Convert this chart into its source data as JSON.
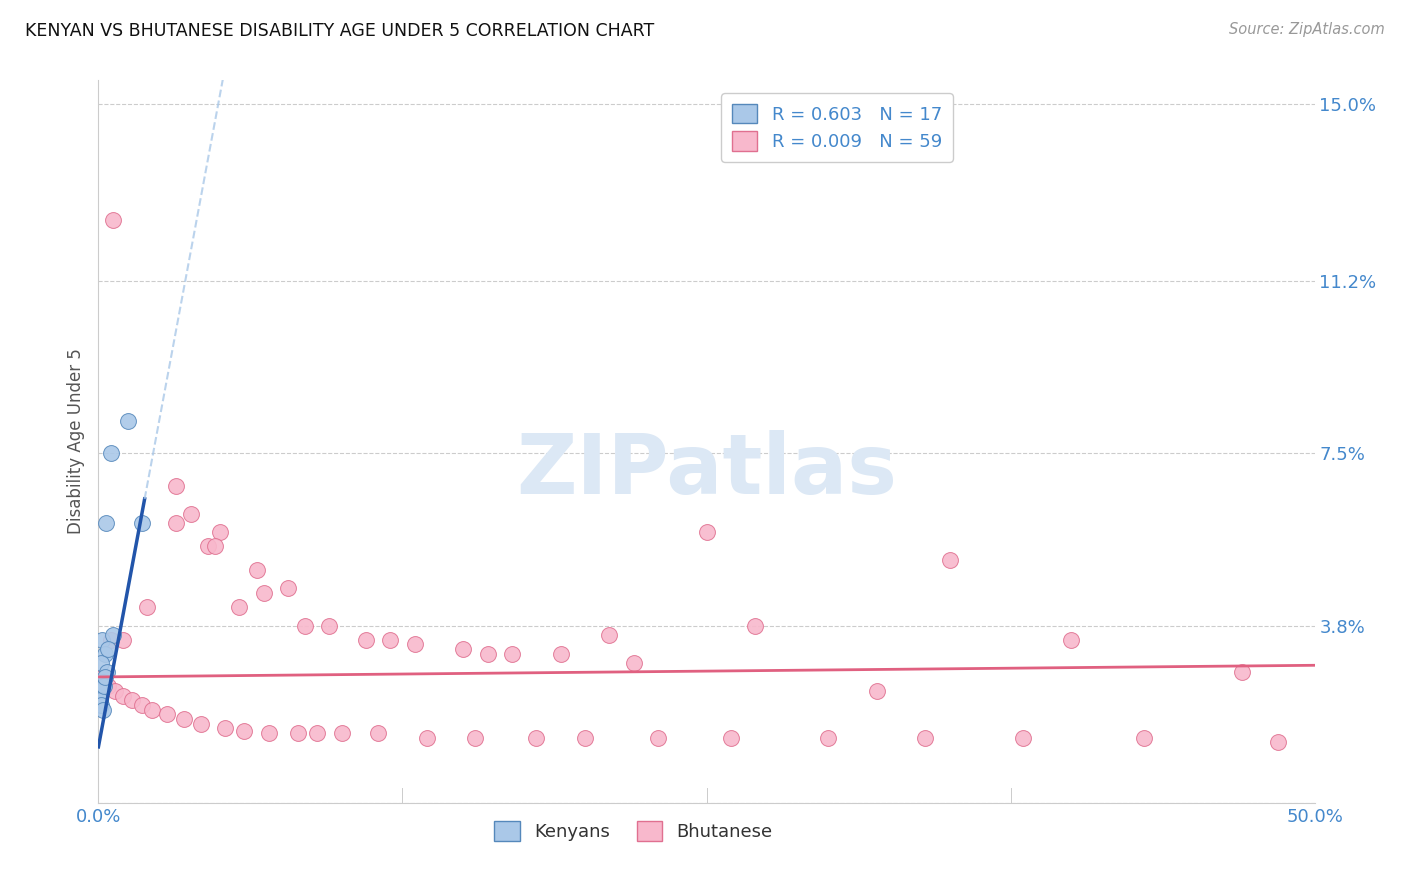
{
  "title": "KENYAN VS BHUTANESE DISABILITY AGE UNDER 5 CORRELATION CHART",
  "source": "Source: ZipAtlas.com",
  "ylabel": "Disability Age Under 5",
  "xlim": [
    0.0,
    50.0
  ],
  "ylim": [
    0.0,
    15.5
  ],
  "ytick_vals": [
    0.0,
    3.8,
    7.5,
    11.2,
    15.0
  ],
  "ytick_labels": [
    "",
    "3.8%",
    "7.5%",
    "11.2%",
    "15.0%"
  ],
  "xtick_positions": [
    0.0,
    12.5,
    25.0,
    37.5,
    50.0
  ],
  "xtick_labels": [
    "0.0%",
    "",
    "",
    "",
    "50.0%"
  ],
  "kenyan_R": "0.603",
  "kenyan_N": "17",
  "bhutanese_R": "0.009",
  "bhutanese_N": "59",
  "kenyan_color": "#aac8e8",
  "bhutanese_color": "#f8b8cc",
  "kenyan_edge_color": "#5588bb",
  "bhutanese_edge_color": "#e07090",
  "kenyan_line_color": "#2255aa",
  "bhutanese_line_color": "#e06080",
  "kenyan_line_intercept": 1.2,
  "kenyan_line_slope": 2.8,
  "bhutanese_line_intercept": 2.7,
  "bhutanese_line_slope": 0.005,
  "kenyan_solid_x_end": 1.9,
  "kenyan_points_x": [
    0.3,
    0.5,
    1.2,
    0.15,
    0.25,
    0.1,
    0.35,
    0.2,
    0.05,
    0.08,
    0.12,
    0.18,
    1.8,
    0.6,
    0.22,
    0.4,
    0.28
  ],
  "kenyan_points_y": [
    6.0,
    7.5,
    8.2,
    3.5,
    3.2,
    3.0,
    2.8,
    2.6,
    2.4,
    2.2,
    2.1,
    2.0,
    6.0,
    3.6,
    2.5,
    3.3,
    2.7
  ],
  "bhutanese_points_x": [
    0.6,
    3.2,
    3.8,
    5.0,
    4.5,
    6.5,
    7.8,
    5.8,
    9.5,
    11.0,
    13.0,
    15.0,
    17.0,
    19.0,
    22.0,
    25.0,
    0.2,
    0.4,
    0.7,
    1.0,
    1.4,
    1.8,
    2.2,
    2.8,
    3.5,
    4.2,
    5.2,
    6.0,
    7.0,
    8.2,
    9.0,
    10.0,
    11.5,
    13.5,
    15.5,
    18.0,
    20.0,
    23.0,
    26.0,
    30.0,
    34.0,
    38.0,
    43.0,
    47.0,
    48.5,
    40.0,
    32.0,
    27.0,
    21.0,
    16.0,
    12.0,
    8.5,
    6.8,
    4.8,
    3.2,
    2.0,
    1.0,
    0.5,
    35.0
  ],
  "bhutanese_points_y": [
    12.5,
    6.8,
    6.2,
    5.8,
    5.5,
    5.0,
    4.6,
    4.2,
    3.8,
    3.5,
    3.4,
    3.3,
    3.2,
    3.2,
    3.0,
    5.8,
    2.7,
    2.5,
    2.4,
    2.3,
    2.2,
    2.1,
    2.0,
    1.9,
    1.8,
    1.7,
    1.6,
    1.55,
    1.5,
    1.5,
    1.5,
    1.5,
    1.5,
    1.4,
    1.4,
    1.4,
    1.4,
    1.4,
    1.4,
    1.4,
    1.4,
    1.4,
    1.4,
    2.8,
    1.3,
    3.5,
    2.4,
    3.8,
    3.6,
    3.2,
    3.5,
    3.8,
    4.5,
    5.5,
    6.0,
    4.2,
    3.5,
    3.5,
    5.2
  ],
  "watermark_text": "ZIPatlas",
  "watermark_color": "#dce8f5",
  "background_color": "#ffffff",
  "grid_color": "#cccccc",
  "tick_label_color": "#4488cc",
  "title_color": "#111111",
  "source_color": "#999999"
}
